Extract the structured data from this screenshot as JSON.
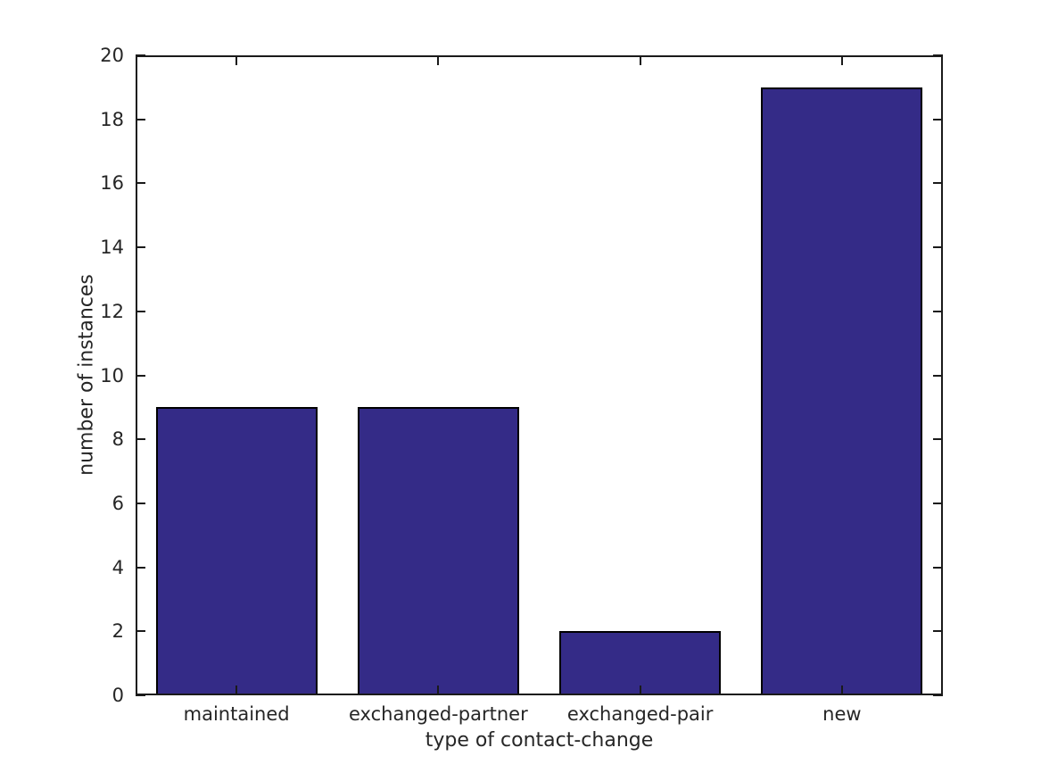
{
  "chart_data": {
    "type": "bar",
    "categories": [
      "maintained",
      "exchanged-partner",
      "exchanged-pair",
      "new"
    ],
    "values": [
      9,
      9,
      2,
      19
    ],
    "title": "",
    "xlabel": "type of contact-change",
    "ylabel": "number of instances",
    "ylim": [
      0,
      20
    ],
    "yticks": [
      0,
      2,
      4,
      6,
      8,
      10,
      12,
      14,
      16,
      18,
      20
    ],
    "bar_width_fraction": 0.8,
    "grid": false,
    "legend": "none",
    "tick_direction": "in",
    "colors": {
      "bar_fill": "#342b87",
      "bar_edge": "#000000",
      "axis": "#1a1a1a",
      "text": "#262626",
      "background": "#ffffff"
    }
  }
}
